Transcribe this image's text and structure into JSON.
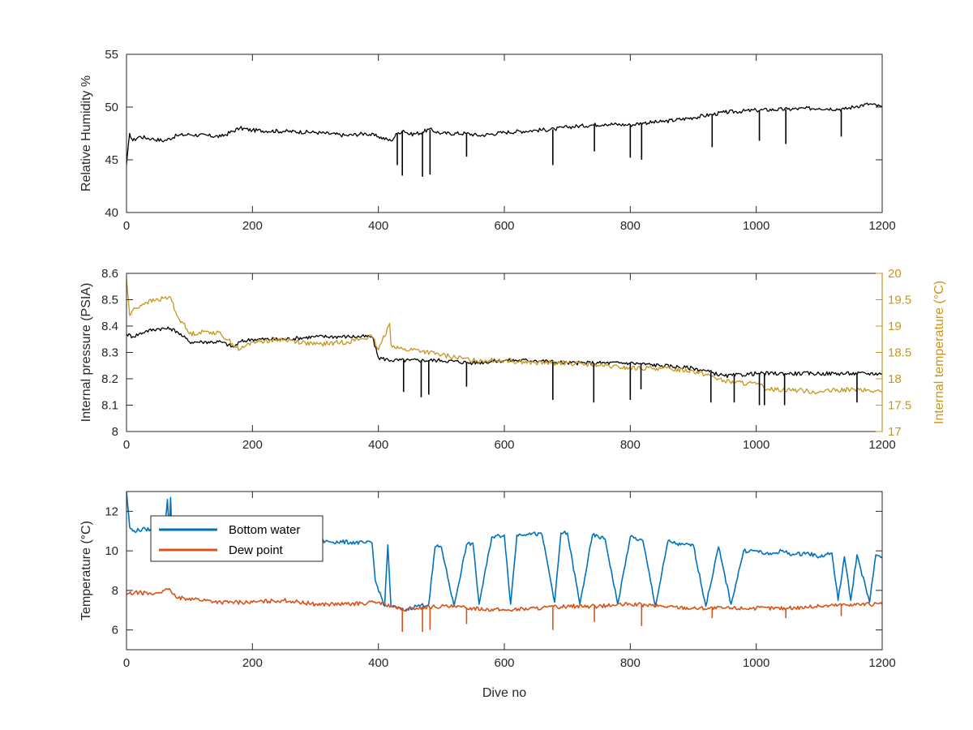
{
  "chart_data": [
    {
      "type": "line",
      "xlabel": "",
      "ylabel": "Relative Humidity %",
      "xlim": [
        0,
        1200
      ],
      "ylim": [
        40,
        55
      ],
      "xticks": [
        "0",
        "200",
        "400",
        "600",
        "800",
        "1000",
        "1200"
      ],
      "yticks": [
        "40",
        "45",
        "50",
        "55"
      ],
      "grid": false,
      "series": [
        {
          "color": "#000000",
          "x": [
            0,
            5,
            10,
            20,
            40,
            60,
            80,
            100,
            150,
            180,
            200,
            250,
            300,
            350,
            380,
            400,
            420,
            430,
            440,
            450,
            470,
            480,
            500,
            540,
            560,
            600,
            650,
            680,
            700,
            740,
            760,
            800,
            820,
            850,
            900,
            930,
            950,
            1000,
            1050,
            1100,
            1140,
            1160,
            1180,
            1200
          ],
          "y": [
            44.5,
            47.5,
            46.8,
            47.2,
            47.0,
            46.8,
            47.3,
            47.4,
            47.2,
            48.0,
            47.8,
            47.7,
            47.6,
            47.3,
            47.5,
            47.2,
            46.8,
            47.5,
            47.8,
            47.4,
            47.6,
            47.9,
            47.5,
            47.5,
            47.3,
            47.6,
            47.8,
            47.9,
            48.1,
            48.3,
            48.4,
            48.3,
            48.5,
            48.6,
            49.0,
            49.3,
            49.5,
            49.7,
            49.8,
            49.9,
            49.8,
            50.1,
            50.3,
            50.0
          ]
        }
      ],
      "dips": [
        {
          "x": 430,
          "y": 44.5
        },
        {
          "x": 438,
          "y": 43.5
        },
        {
          "x": 470,
          "y": 43.4
        },
        {
          "x": 482,
          "y": 43.6
        },
        {
          "x": 540,
          "y": 45.3
        },
        {
          "x": 677,
          "y": 44.5
        },
        {
          "x": 743,
          "y": 45.8
        },
        {
          "x": 800,
          "y": 45.2
        },
        {
          "x": 818,
          "y": 45.0
        },
        {
          "x": 930,
          "y": 46.2
        },
        {
          "x": 1005,
          "y": 46.8
        },
        {
          "x": 1047,
          "y": 46.5
        },
        {
          "x": 1135,
          "y": 47.2
        }
      ]
    },
    {
      "type": "line",
      "xlabel": "",
      "ylabel": "Internal pressure (PSIA)",
      "ylabel_right": "Internal temperature (°C)",
      "xlim": [
        0,
        1200
      ],
      "ylim": [
        8,
        8.6
      ],
      "ylim_right": [
        17,
        20
      ],
      "xticks": [
        "0",
        "200",
        "400",
        "600",
        "800",
        "1000",
        "1200"
      ],
      "yticks": [
        "8",
        "8.1",
        "8.2",
        "8.3",
        "8.4",
        "8.5",
        "8.6"
      ],
      "yticks_right": [
        "17",
        "17.5",
        "18",
        "18.5",
        "19",
        "19.5",
        "20"
      ],
      "grid": false,
      "series": [
        {
          "axis": "left",
          "color": "#000000",
          "x": [
            0,
            10,
            30,
            50,
            70,
            80,
            90,
            100,
            120,
            150,
            170,
            180,
            200,
            250,
            300,
            350,
            390,
            400,
            420,
            450,
            500,
            550,
            600,
            650,
            700,
            750,
            800,
            850,
            900,
            920,
            950,
            1000,
            1050,
            1100,
            1150,
            1200
          ],
          "y": [
            8.37,
            8.36,
            8.38,
            8.39,
            8.39,
            8.38,
            8.36,
            8.34,
            8.34,
            8.34,
            8.32,
            8.34,
            8.35,
            8.35,
            8.36,
            8.36,
            8.36,
            8.28,
            8.27,
            8.27,
            8.27,
            8.26,
            8.27,
            8.27,
            8.26,
            8.26,
            8.26,
            8.25,
            8.24,
            8.23,
            8.21,
            8.22,
            8.22,
            8.22,
            8.22,
            8.22
          ]
        },
        {
          "axis": "right",
          "color": "#C8961E",
          "x": [
            0,
            5,
            10,
            30,
            50,
            70,
            80,
            90,
            100,
            130,
            150,
            180,
            200,
            250,
            300,
            350,
            390,
            400,
            418,
            420,
            440,
            460,
            500,
            550,
            600,
            650,
            700,
            750,
            800,
            850,
            900,
            930,
            950,
            1000,
            1020,
            1050,
            1100,
            1150,
            1200
          ],
          "y": [
            19.9,
            19.2,
            19.3,
            19.45,
            19.5,
            19.55,
            19.2,
            19.05,
            18.85,
            18.9,
            18.85,
            18.55,
            18.7,
            18.75,
            18.65,
            18.7,
            18.8,
            18.55,
            19.05,
            18.65,
            18.55,
            18.55,
            18.45,
            18.35,
            18.35,
            18.3,
            18.3,
            18.25,
            18.2,
            18.2,
            18.15,
            18.05,
            17.95,
            17.9,
            17.8,
            17.8,
            17.75,
            17.8,
            17.75
          ]
        }
      ],
      "dips": [
        {
          "x": 440,
          "y": 8.15
        },
        {
          "x": 468,
          "y": 8.13
        },
        {
          "x": 480,
          "y": 8.14
        },
        {
          "x": 540,
          "y": 8.17
        },
        {
          "x": 677,
          "y": 8.12
        },
        {
          "x": 742,
          "y": 8.11
        },
        {
          "x": 800,
          "y": 8.12
        },
        {
          "x": 817,
          "y": 8.16
        },
        {
          "x": 928,
          "y": 8.11
        },
        {
          "x": 965,
          "y": 8.11
        },
        {
          "x": 1005,
          "y": 8.1
        },
        {
          "x": 1013,
          "y": 8.1
        },
        {
          "x": 1045,
          "y": 8.1
        },
        {
          "x": 1160,
          "y": 8.11
        }
      ]
    },
    {
      "type": "line",
      "xlabel": "Dive no",
      "ylabel": "Temperature (°C)",
      "xlim": [
        0,
        1200
      ],
      "ylim": [
        5,
        13
      ],
      "xticks": [
        "0",
        "200",
        "400",
        "600",
        "800",
        "1000",
        "1200"
      ],
      "yticks": [
        "6",
        "8",
        "10",
        "12"
      ],
      "grid": false,
      "legend": {
        "location": "top-left",
        "entries": [
          {
            "label": "Bottom water",
            "color": "#0072BD"
          },
          {
            "label": "Dew point",
            "color": "#D95319"
          }
        ]
      },
      "series": [
        {
          "name": "Bottom water",
          "color": "#0072BD",
          "x": [
            0,
            5,
            10,
            30,
            60,
            65,
            68,
            70,
            72,
            75,
            100,
            200,
            300,
            380,
            390,
            395,
            410,
            415,
            420,
            440,
            460,
            480,
            490,
            500,
            520,
            540,
            550,
            560,
            580,
            600,
            610,
            620,
            640,
            660,
            680,
            690,
            700,
            720,
            740,
            760,
            780,
            800,
            820,
            840,
            860,
            880,
            900,
            920,
            940,
            960,
            980,
            1000,
            1020,
            1040,
            1060,
            1080,
            1100,
            1120,
            1130,
            1140,
            1150,
            1160,
            1180,
            1190,
            1200
          ],
          "y": [
            13.0,
            11.2,
            11.0,
            11.1,
            11.0,
            12.6,
            11.0,
            12.7,
            11.0,
            10.9,
            10.8,
            10.7,
            10.5,
            10.4,
            10.4,
            8.5,
            7.2,
            10.3,
            7.2,
            7.0,
            7.2,
            7.3,
            10.2,
            10.2,
            7.2,
            10.3,
            10.4,
            7.3,
            10.7,
            10.8,
            7.3,
            10.8,
            10.9,
            10.8,
            7.4,
            10.9,
            10.9,
            7.3,
            10.8,
            10.6,
            7.3,
            10.7,
            10.5,
            7.2,
            10.5,
            10.3,
            10.3,
            7.2,
            10.2,
            7.3,
            10.0,
            10.0,
            9.8,
            10.0,
            9.8,
            9.9,
            9.7,
            9.9,
            7.5,
            9.7,
            7.5,
            9.8,
            7.4,
            9.8,
            9.7
          ]
        },
        {
          "name": "Dew point",
          "color": "#D95319",
          "x": [
            0,
            20,
            40,
            60,
            70,
            80,
            100,
            150,
            200,
            250,
            300,
            350,
            400,
            420,
            440,
            460,
            500,
            550,
            600,
            650,
            700,
            750,
            800,
            850,
            900,
            950,
            1000,
            1050,
            1100,
            1150,
            1200
          ],
          "y": [
            7.8,
            7.9,
            7.8,
            8.0,
            8.0,
            7.6,
            7.6,
            7.4,
            7.4,
            7.5,
            7.3,
            7.3,
            7.4,
            7.2,
            7.0,
            7.1,
            7.2,
            7.1,
            7.0,
            7.1,
            7.2,
            7.2,
            7.3,
            7.2,
            7.1,
            7.1,
            7.1,
            7.1,
            7.2,
            7.3,
            7.3
          ]
        }
      ],
      "dips": [
        {
          "x": 438,
          "y": 5.9
        },
        {
          "x": 470,
          "y": 5.9
        },
        {
          "x": 482,
          "y": 6.0
        },
        {
          "x": 540,
          "y": 6.3
        },
        {
          "x": 677,
          "y": 6.0
        },
        {
          "x": 743,
          "y": 6.4
        },
        {
          "x": 818,
          "y": 6.2
        },
        {
          "x": 930,
          "y": 6.6
        },
        {
          "x": 1047,
          "y": 6.6
        },
        {
          "x": 1135,
          "y": 6.7
        }
      ]
    }
  ]
}
